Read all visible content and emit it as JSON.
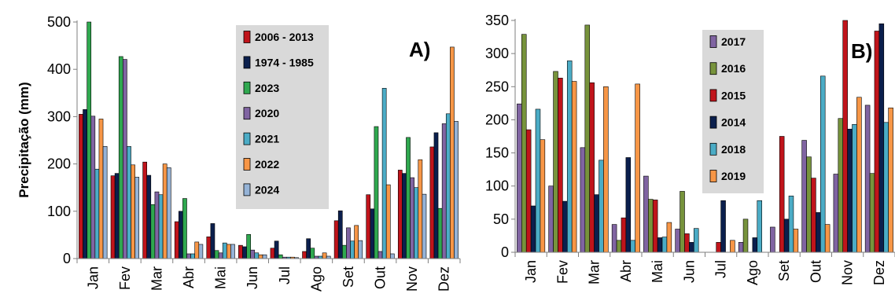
{
  "chart_data": [
    {
      "type": "bar",
      "panel_label": "A)",
      "title": "",
      "xlabel": "",
      "ylabel": "Precipitação (mm)",
      "ylim": [
        0,
        500
      ],
      "yticks": [
        "0",
        "100",
        "200",
        "300",
        "400",
        "500"
      ],
      "categories": [
        "Jan",
        "Fev",
        "Mar",
        "Abr",
        "Mai",
        "Jun",
        "Jul",
        "Ago",
        "Set",
        "Out",
        "Nov",
        "Dez"
      ],
      "legend_position": "top-center",
      "grid": false,
      "series": [
        {
          "name": "2006 - 2013",
          "color": "#c0141b",
          "values": [
            305,
            175,
            204,
            78,
            46,
            28,
            22,
            15,
            80,
            135,
            187,
            236
          ]
        },
        {
          "name": "1974 - 1985",
          "color": "#0b1f4d",
          "values": [
            315,
            180,
            176,
            100,
            74,
            25,
            37,
            42,
            101,
            105,
            180,
            266
          ]
        },
        {
          "name": "2023",
          "color": "#2fa84f",
          "values": [
            500,
            427,
            114,
            127,
            17,
            51,
            8,
            22,
            28,
            279,
            256,
            106
          ]
        },
        {
          "name": "2020",
          "color": "#8064a2",
          "values": [
            301,
            421,
            141,
            10,
            12,
            18,
            3,
            5,
            65,
            15,
            171,
            285
          ]
        },
        {
          "name": "2021",
          "color": "#4bacc6",
          "values": [
            189,
            237,
            135,
            10,
            33,
            12,
            3,
            5,
            37,
            360,
            150,
            306
          ]
        },
        {
          "name": "2022",
          "color": "#f79646",
          "values": [
            295,
            198,
            200,
            35,
            30,
            8,
            3,
            12,
            70,
            156,
            209,
            447
          ]
        },
        {
          "name": "2024",
          "color": "#95b3d7",
          "values": [
            237,
            172,
            192,
            30,
            30,
            8,
            2,
            5,
            38,
            10,
            136,
            290
          ]
        }
      ]
    },
    {
      "type": "bar",
      "panel_label": "B)",
      "title": "",
      "xlabel": "",
      "ylabel": "",
      "ylim": [
        0,
        350
      ],
      "yticks": [
        "0",
        "50",
        "100",
        "150",
        "200",
        "250",
        "300",
        "350"
      ],
      "categories": [
        "Jan",
        "Fev",
        "Mar",
        "Abr",
        "Mai",
        "Jun",
        "Jul",
        "Ago",
        "Set",
        "Out",
        "Nov",
        "Dez"
      ],
      "legend_position": "top-center",
      "grid": false,
      "series": [
        {
          "name": "2017",
          "color": "#8064a2",
          "values": [
            224,
            100,
            158,
            42,
            115,
            35,
            0,
            15,
            38,
            169,
            118,
            222
          ]
        },
        {
          "name": "2016",
          "color": "#77933c",
          "values": [
            329,
            273,
            343,
            18,
            80,
            92,
            0,
            50,
            0,
            144,
            202,
            119
          ]
        },
        {
          "name": "2015",
          "color": "#c0141b",
          "values": [
            185,
            263,
            256,
            52,
            79,
            28,
            15,
            0,
            175,
            112,
            350,
            334
          ]
        },
        {
          "name": "2014",
          "color": "#0b1f4d",
          "values": [
            70,
            77,
            87,
            143,
            22,
            15,
            78,
            22,
            50,
            60,
            186,
            345
          ]
        },
        {
          "name": "2018",
          "color": "#4bacc6",
          "values": [
            216,
            289,
            139,
            18,
            23,
            36,
            0,
            78,
            85,
            266,
            193,
            196
          ]
        },
        {
          "name": "2019",
          "color": "#f79646",
          "values": [
            170,
            258,
            250,
            254,
            45,
            0,
            18,
            0,
            35,
            42,
            234,
            218
          ]
        }
      ]
    }
  ]
}
